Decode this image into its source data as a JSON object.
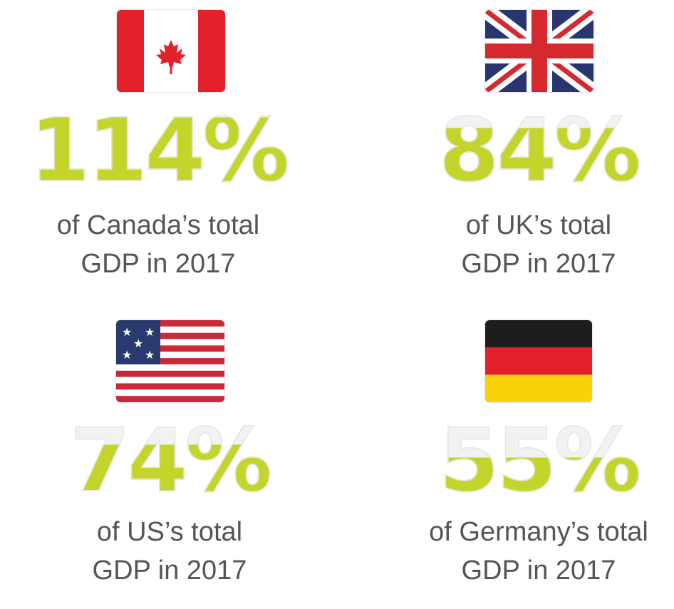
{
  "colors": {
    "accent": "#c3d52a",
    "unfilled": "#f2f2f2",
    "text": "#555555"
  },
  "cards": [
    {
      "country": "Canada",
      "flag_icon": "canada-flag-icon",
      "percent": "114%",
      "fill_fraction": 1.0,
      "line1": "of Canada’s total",
      "line2": "GDP in 2017"
    },
    {
      "country": "UK",
      "flag_icon": "uk-flag-icon",
      "percent": "84%",
      "fill_fraction": 0.84,
      "line1": "of UK’s total",
      "line2": "GDP in 2017"
    },
    {
      "country": "US",
      "flag_icon": "us-flag-icon",
      "percent": "74%",
      "fill_fraction": 0.74,
      "line1": "of US’s total",
      "line2": "GDP in 2017"
    },
    {
      "country": "Germany",
      "flag_icon": "germany-flag-icon",
      "percent": "55%",
      "fill_fraction": 0.55,
      "line1": "of Germany’s total",
      "line2": "GDP in 2017"
    }
  ]
}
